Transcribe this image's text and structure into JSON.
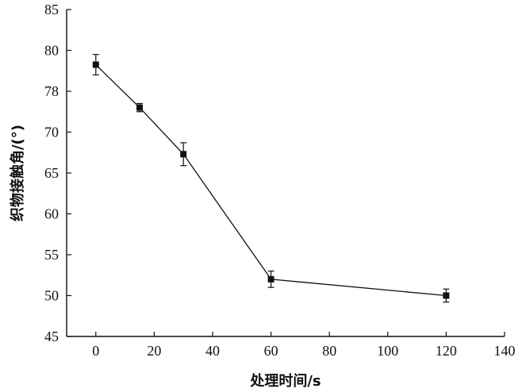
{
  "chart_data": {
    "type": "line",
    "xlabel": "处理时间/s",
    "ylabel": "织物接触角/(°)",
    "xlim": [
      -10,
      140
    ],
    "ylim": [
      45,
      85
    ],
    "x_ticks": [
      0,
      20,
      40,
      60,
      80,
      100,
      120,
      140
    ],
    "y_ticks": [
      45,
      50,
      55,
      60,
      65,
      70,
      78,
      80,
      85
    ],
    "grid": false,
    "series": [
      {
        "x": [
          0,
          15,
          30,
          60,
          120
        ],
        "y": [
          79.3,
          74.8,
          67.3,
          52.0,
          50.0
        ],
        "error": [
          0.5,
          0.8,
          1.4,
          1.0,
          0.8
        ],
        "marker": "square",
        "color": "#111111"
      }
    ]
  }
}
